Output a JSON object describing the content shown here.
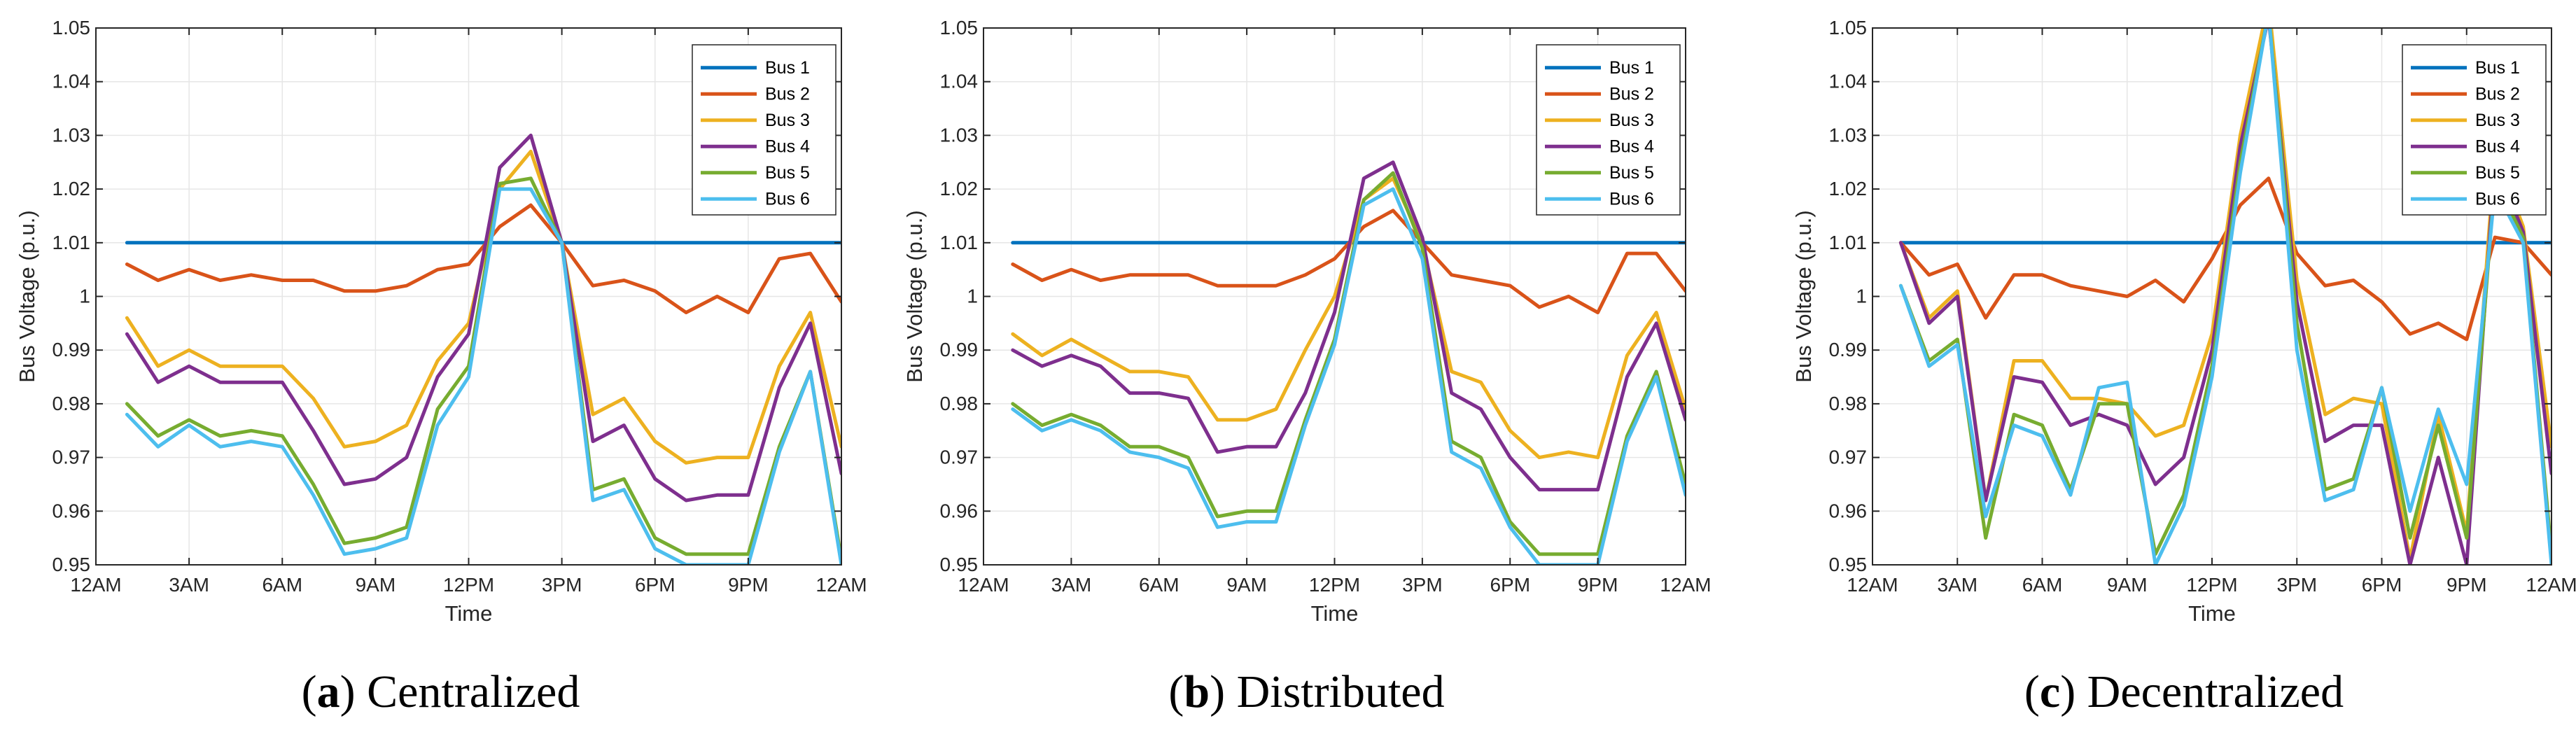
{
  "colors": {
    "Bus 1": "#0072BD",
    "Bus 2": "#D95319",
    "Bus 3": "#EDB120",
    "Bus 4": "#7E2F8E",
    "Bus 5": "#77AC30",
    "Bus 6": "#4DBEEE"
  },
  "chart_data": [
    {
      "type": "line",
      "caption_letter": "a",
      "caption_text": "Centralized",
      "xlabel": "Time",
      "ylabel": "Bus Voltage (p.u.)",
      "xlim": [
        0,
        24
      ],
      "ylim": [
        0.95,
        1.05
      ],
      "xticks": [
        0,
        3,
        6,
        9,
        12,
        15,
        18,
        21,
        24
      ],
      "xtick_labels": [
        "12AM",
        "3AM",
        "6AM",
        "9AM",
        "12PM",
        "3PM",
        "6PM",
        "9PM",
        "12AM"
      ],
      "yticks": [
        0.95,
        0.96,
        0.97,
        0.98,
        0.99,
        1.0,
        1.01,
        1.02,
        1.03,
        1.04,
        1.05
      ],
      "ytick_labels": [
        "0.95",
        "0.96",
        "0.97",
        "0.98",
        "0.99",
        "1",
        "1.01",
        "1.02",
        "1.03",
        "1.04",
        "1.05"
      ],
      "legend_position": "top-right",
      "x": [
        1,
        2,
        3,
        4,
        5,
        6,
        7,
        8,
        9,
        10,
        11,
        12,
        13,
        14,
        15,
        16,
        17,
        18,
        19,
        20,
        21,
        22,
        23,
        24
      ],
      "series": [
        {
          "name": "Bus 1",
          "values": [
            1.01,
            1.01,
            1.01,
            1.01,
            1.01,
            1.01,
            1.01,
            1.01,
            1.01,
            1.01,
            1.01,
            1.01,
            1.01,
            1.01,
            1.01,
            1.01,
            1.01,
            1.01,
            1.01,
            1.01,
            1.01,
            1.01,
            1.01,
            1.01
          ]
        },
        {
          "name": "Bus 2",
          "values": [
            1.006,
            1.003,
            1.005,
            1.003,
            1.004,
            1.003,
            1.003,
            1.001,
            1.001,
            1.002,
            1.005,
            1.006,
            1.013,
            1.017,
            1.01,
            1.002,
            1.003,
            1.001,
            0.997,
            1.0,
            0.997,
            1.007,
            1.008,
            0.999
          ]
        },
        {
          "name": "Bus 3",
          "values": [
            0.996,
            0.987,
            0.99,
            0.987,
            0.987,
            0.987,
            0.981,
            0.972,
            0.973,
            0.976,
            0.988,
            0.995,
            1.02,
            1.027,
            1.01,
            0.978,
            0.981,
            0.973,
            0.969,
            0.97,
            0.97,
            0.987,
            0.997,
            0.972
          ]
        },
        {
          "name": "Bus 4",
          "values": [
            0.993,
            0.984,
            0.987,
            0.984,
            0.984,
            0.984,
            0.975,
            0.965,
            0.966,
            0.97,
            0.985,
            0.993,
            1.024,
            1.03,
            1.01,
            0.973,
            0.976,
            0.966,
            0.962,
            0.963,
            0.963,
            0.983,
            0.995,
            0.967
          ]
        },
        {
          "name": "Bus 5",
          "values": [
            0.98,
            0.974,
            0.977,
            0.974,
            0.975,
            0.974,
            0.965,
            0.954,
            0.955,
            0.957,
            0.979,
            0.987,
            1.021,
            1.022,
            1.01,
            0.964,
            0.966,
            0.955,
            0.952,
            0.952,
            0.952,
            0.972,
            0.986,
            0.951
          ]
        },
        {
          "name": "Bus 6",
          "values": [
            0.978,
            0.972,
            0.976,
            0.972,
            0.973,
            0.972,
            0.963,
            0.952,
            0.953,
            0.955,
            0.976,
            0.985,
            1.02,
            1.02,
            1.01,
            0.962,
            0.964,
            0.953,
            0.95,
            0.95,
            0.95,
            0.971,
            0.986,
            0.95
          ]
        }
      ]
    },
    {
      "type": "line",
      "caption_letter": "b",
      "caption_text": "Distributed",
      "xlabel": "Time",
      "ylabel": "Bus Voltage (p.u.)",
      "xlim": [
        0,
        24
      ],
      "ylim": [
        0.95,
        1.05
      ],
      "xticks": [
        0,
        3,
        6,
        9,
        12,
        15,
        18,
        21,
        24
      ],
      "xtick_labels": [
        "12AM",
        "3AM",
        "6AM",
        "9AM",
        "12PM",
        "3PM",
        "6PM",
        "9PM",
        "12AM"
      ],
      "yticks": [
        0.95,
        0.96,
        0.97,
        0.98,
        0.99,
        1.0,
        1.01,
        1.02,
        1.03,
        1.04,
        1.05
      ],
      "ytick_labels": [
        "0.95",
        "0.96",
        "0.97",
        "0.98",
        "0.99",
        "1",
        "1.01",
        "1.02",
        "1.03",
        "1.04",
        "1.05"
      ],
      "legend_position": "top-right",
      "x": [
        1,
        2,
        3,
        4,
        5,
        6,
        7,
        8,
        9,
        10,
        11,
        12,
        13,
        14,
        15,
        16,
        17,
        18,
        19,
        20,
        21,
        22,
        23,
        24
      ],
      "series": [
        {
          "name": "Bus 1",
          "values": [
            1.01,
            1.01,
            1.01,
            1.01,
            1.01,
            1.01,
            1.01,
            1.01,
            1.01,
            1.01,
            1.01,
            1.01,
            1.01,
            1.01,
            1.01,
            1.01,
            1.01,
            1.01,
            1.01,
            1.01,
            1.01,
            1.01,
            1.01,
            1.01
          ]
        },
        {
          "name": "Bus 2",
          "values": [
            1.006,
            1.003,
            1.005,
            1.003,
            1.004,
            1.004,
            1.004,
            1.002,
            1.002,
            1.002,
            1.004,
            1.007,
            1.013,
            1.016,
            1.01,
            1.004,
            1.003,
            1.002,
            0.998,
            1.0,
            0.997,
            1.008,
            1.008,
            1.001
          ]
        },
        {
          "name": "Bus 3",
          "values": [
            0.993,
            0.989,
            0.992,
            0.989,
            0.986,
            0.986,
            0.985,
            0.977,
            0.977,
            0.979,
            0.99,
            1.0,
            1.018,
            1.022,
            1.01,
            0.986,
            0.984,
            0.975,
            0.97,
            0.971,
            0.97,
            0.989,
            0.997,
            0.979
          ]
        },
        {
          "name": "Bus 4",
          "values": [
            0.99,
            0.987,
            0.989,
            0.987,
            0.982,
            0.982,
            0.981,
            0.971,
            0.972,
            0.972,
            0.982,
            0.997,
            1.022,
            1.025,
            1.011,
            0.982,
            0.979,
            0.97,
            0.964,
            0.964,
            0.964,
            0.985,
            0.995,
            0.977
          ]
        },
        {
          "name": "Bus 5",
          "values": [
            0.98,
            0.976,
            0.978,
            0.976,
            0.972,
            0.972,
            0.97,
            0.959,
            0.96,
            0.96,
            0.977,
            0.992,
            1.018,
            1.023,
            1.009,
            0.973,
            0.97,
            0.958,
            0.952,
            0.952,
            0.952,
            0.974,
            0.986,
            0.965
          ]
        },
        {
          "name": "Bus 6",
          "values": [
            0.979,
            0.975,
            0.977,
            0.975,
            0.971,
            0.97,
            0.968,
            0.957,
            0.958,
            0.958,
            0.976,
            0.991,
            1.017,
            1.02,
            1.007,
            0.971,
            0.968,
            0.957,
            0.95,
            0.95,
            0.95,
            0.973,
            0.985,
            0.963
          ]
        }
      ]
    },
    {
      "type": "line",
      "caption_letter": "c",
      "caption_text": "Decentralized",
      "xlabel": "Time",
      "ylabel": "Bus Voltage (p.u.)",
      "xlim": [
        0,
        24
      ],
      "ylim": [
        0.95,
        1.05
      ],
      "xticks": [
        0,
        3,
        6,
        9,
        12,
        15,
        18,
        21,
        24
      ],
      "xtick_labels": [
        "12AM",
        "3AM",
        "6AM",
        "9AM",
        "12PM",
        "3PM",
        "6PM",
        "9PM",
        "12AM"
      ],
      "yticks": [
        0.95,
        0.96,
        0.97,
        0.98,
        0.99,
        1.0,
        1.01,
        1.02,
        1.03,
        1.04,
        1.05
      ],
      "ytick_labels": [
        "0.95",
        "0.96",
        "0.97",
        "0.98",
        "0.99",
        "1",
        "1.01",
        "1.02",
        "1.03",
        "1.04",
        "1.05"
      ],
      "legend_position": "top-right",
      "x": [
        1,
        2,
        3,
        4,
        5,
        6,
        7,
        8,
        9,
        10,
        11,
        12,
        13,
        14,
        15,
        16,
        17,
        18,
        19,
        20,
        21,
        22,
        23,
        24
      ],
      "series": [
        {
          "name": "Bus 1",
          "values": [
            1.01,
            1.01,
            1.01,
            1.01,
            1.01,
            1.01,
            1.01,
            1.01,
            1.01,
            1.01,
            1.01,
            1.01,
            1.01,
            1.01,
            1.01,
            1.01,
            1.01,
            1.01,
            1.01,
            1.01,
            1.01,
            1.01,
            1.01,
            1.01
          ]
        },
        {
          "name": "Bus 2",
          "values": [
            1.01,
            1.004,
            1.006,
            0.996,
            1.004,
            1.004,
            1.002,
            1.001,
            1.0,
            1.003,
            0.999,
            1.007,
            1.017,
            1.022,
            1.008,
            1.002,
            1.003,
            0.999,
            0.993,
            0.995,
            0.992,
            1.011,
            1.01,
            1.004
          ]
        },
        {
          "name": "Bus 3",
          "values": [
            1.01,
            0.996,
            1.001,
            0.962,
            0.988,
            0.988,
            0.981,
            0.981,
            0.98,
            0.974,
            0.976,
            0.993,
            1.03,
            1.055,
            1.003,
            0.978,
            0.981,
            0.98,
            0.951,
            0.978,
            0.956,
            1.027,
            1.013,
            0.972
          ]
        },
        {
          "name": "Bus 4",
          "values": [
            1.01,
            0.995,
            1.0,
            0.962,
            0.985,
            0.984,
            0.976,
            0.978,
            0.976,
            0.965,
            0.97,
            0.99,
            1.028,
            1.052,
            0.999,
            0.973,
            0.976,
            0.976,
            0.95,
            0.97,
            0.95,
            1.025,
            1.012,
            0.967
          ]
        },
        {
          "name": "Bus 5",
          "values": [
            1.002,
            0.988,
            0.992,
            0.955,
            0.978,
            0.976,
            0.964,
            0.98,
            0.98,
            0.952,
            0.963,
            0.987,
            1.025,
            1.053,
            0.995,
            0.964,
            0.966,
            0.983,
            0.955,
            0.976,
            0.955,
            1.022,
            1.011,
            0.952
          ]
        },
        {
          "name": "Bus 6",
          "values": [
            1.002,
            0.987,
            0.991,
            0.959,
            0.976,
            0.974,
            0.963,
            0.983,
            0.984,
            0.95,
            0.961,
            0.985,
            1.023,
            1.053,
            0.99,
            0.962,
            0.964,
            0.983,
            0.96,
            0.979,
            0.965,
            1.02,
            1.01,
            0.95
          ]
        }
      ]
    }
  ]
}
